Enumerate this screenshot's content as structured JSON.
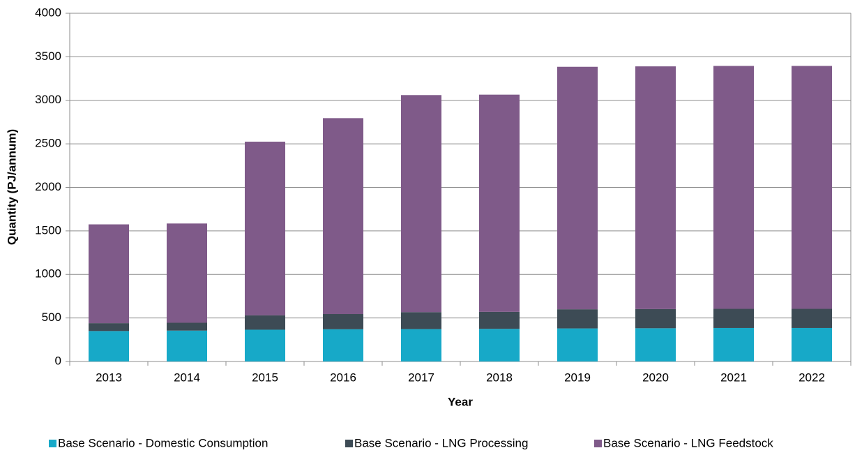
{
  "chart_data": {
    "type": "stacked_bar",
    "categories": [
      "2013",
      "2014",
      "2015",
      "2016",
      "2017",
      "2018",
      "2019",
      "2020",
      "2021",
      "2022"
    ],
    "series": [
      {
        "name": "Base Scenario - Domestic Consumption",
        "color": "#17a9c8",
        "values": [
          350,
          355,
          365,
          370,
          372,
          375,
          380,
          382,
          385,
          385
        ]
      },
      {
        "name": "Base Scenario - LNG Processing",
        "color": "#3d4b55",
        "values": [
          90,
          90,
          165,
          175,
          195,
          195,
          220,
          220,
          220,
          220
        ]
      },
      {
        "name": "Base Scenario - LNG Feedstock",
        "color": "#7f5a89",
        "values": [
          1135,
          1140,
          1995,
          2250,
          2493,
          2495,
          2785,
          2788,
          2790,
          2790
        ]
      }
    ],
    "xlabel": "Year",
    "ylabel": "Quantity (PJ/annum)",
    "ylim": [
      0,
      4000
    ],
    "yticks": [
      0,
      500,
      1000,
      1500,
      2000,
      2500,
      3000,
      3500,
      4000
    ],
    "grid": true,
    "legend": "bottom"
  }
}
